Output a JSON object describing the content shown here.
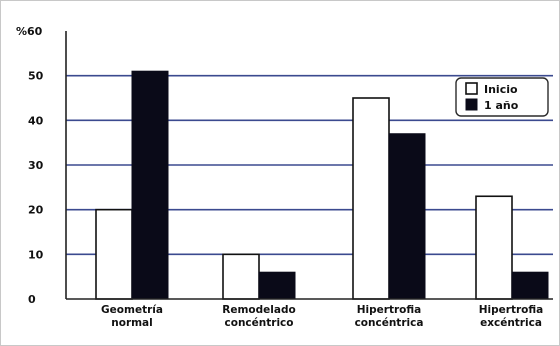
{
  "chart_data": {
    "type": "bar",
    "title": "",
    "xlabel": "",
    "ylabel": "",
    "y_unit_label": "%60",
    "ylim": [
      0,
      60
    ],
    "yticks": [
      0,
      10,
      20,
      30,
      40,
      50
    ],
    "grid": true,
    "legend_position": "top-right",
    "categories": [
      [
        "Geometría",
        "normal"
      ],
      [
        "Remodelado",
        "concéntrico"
      ],
      [
        "Hipertrofia",
        "concéntrica"
      ],
      [
        "Hipertrofia",
        "excéntrica"
      ]
    ],
    "series": [
      {
        "name": "Inicio",
        "values": [
          20,
          10,
          45,
          23
        ],
        "color": "#ffffff",
        "style": "open"
      },
      {
        "name": "1 año",
        "values": [
          51,
          6,
          37,
          6
        ],
        "color": "#0a0a18",
        "style": "solid"
      }
    ]
  }
}
